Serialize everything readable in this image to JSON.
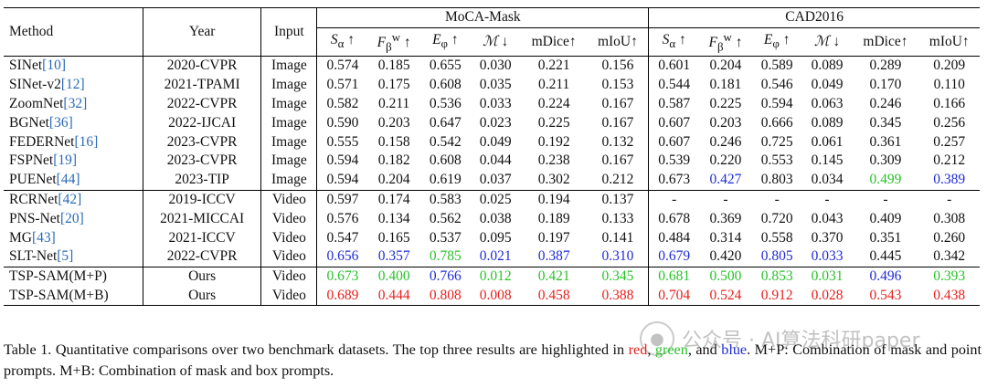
{
  "table": {
    "headers": {
      "method": "Method",
      "year": "Year",
      "input": "Input",
      "group1": "MoCA-Mask",
      "group2": "CAD2016"
    },
    "metrics": [
      "S_α ↑",
      "F_β^w ↑",
      "E_φ ↑",
      "M ↓",
      "mDice↑",
      "mIoU↑"
    ],
    "sections": [
      {
        "rows": [
          {
            "name": "SINet",
            "cite": "[10]",
            "year": "2020-CVPR",
            "input": "Image",
            "moca": [
              "0.574",
              "0.185",
              "0.655",
              "0.030",
              "0.221",
              "0.156"
            ],
            "cad": [
              "0.601",
              "0.204",
              "0.589",
              "0.089",
              "0.289",
              "0.209"
            ],
            "moca_colors": [
              "",
              "",
              "",
              "",
              "",
              ""
            ],
            "cad_colors": [
              "",
              "",
              "",
              "",
              "",
              ""
            ]
          },
          {
            "name": "SINet-v2",
            "cite": "[12]",
            "year": "2021-TPAMI",
            "input": "Image",
            "moca": [
              "0.571",
              "0.175",
              "0.608",
              "0.035",
              "0.211",
              "0.153"
            ],
            "cad": [
              "0.544",
              "0.181",
              "0.546",
              "0.049",
              "0.170",
              "0.110"
            ],
            "moca_colors": [
              "",
              "",
              "",
              "",
              "",
              ""
            ],
            "cad_colors": [
              "",
              "",
              "",
              "",
              "",
              ""
            ]
          },
          {
            "name": "ZoomNet",
            "cite": "[32]",
            "year": "2022-CVPR",
            "input": "Image",
            "moca": [
              "0.582",
              "0.211",
              "0.536",
              "0.033",
              "0.224",
              "0.167"
            ],
            "cad": [
              "0.587",
              "0.225",
              "0.594",
              "0.063",
              "0.246",
              "0.166"
            ],
            "moca_colors": [
              "",
              "",
              "",
              "",
              "",
              ""
            ],
            "cad_colors": [
              "",
              "",
              "",
              "",
              "",
              ""
            ]
          },
          {
            "name": "BGNet",
            "cite": "[36]",
            "year": "2022-IJCAI",
            "input": "Image",
            "moca": [
              "0.590",
              "0.203",
              "0.647",
              "0.023",
              "0.225",
              "0.167"
            ],
            "cad": [
              "0.607",
              "0.203",
              "0.666",
              "0.089",
              "0.345",
              "0.256"
            ],
            "moca_colors": [
              "",
              "",
              "",
              "",
              "",
              ""
            ],
            "cad_colors": [
              "",
              "",
              "",
              "",
              "",
              ""
            ]
          },
          {
            "name": "FEDERNet",
            "cite": "[16]",
            "year": "2023-CVPR",
            "input": "Image",
            "moca": [
              "0.555",
              "0.158",
              "0.542",
              "0.049",
              "0.192",
              "0.132"
            ],
            "cad": [
              "0.607",
              "0.246",
              "0.725",
              "0.061",
              "0.361",
              "0.257"
            ],
            "moca_colors": [
              "",
              "",
              "",
              "",
              "",
              ""
            ],
            "cad_colors": [
              "",
              "",
              "",
              "",
              "",
              ""
            ]
          },
          {
            "name": "FSPNet",
            "cite": "[19]",
            "year": "2023-CVPR",
            "input": "Image",
            "moca": [
              "0.594",
              "0.182",
              "0.608",
              "0.044",
              "0.238",
              "0.167"
            ],
            "cad": [
              "0.539",
              "0.220",
              "0.553",
              "0.145",
              "0.309",
              "0.212"
            ],
            "moca_colors": [
              "",
              "",
              "",
              "",
              "",
              ""
            ],
            "cad_colors": [
              "",
              "",
              "",
              "",
              "",
              ""
            ]
          },
          {
            "name": "PUENet",
            "cite": "[44]",
            "year": "2023-TIP",
            "input": "Image",
            "moca": [
              "0.594",
              "0.204",
              "0.619",
              "0.037",
              "0.302",
              "0.212"
            ],
            "cad": [
              "0.673",
              "0.427",
              "0.803",
              "0.034",
              "0.499",
              "0.389"
            ],
            "moca_colors": [
              "",
              "",
              "",
              "",
              "",
              ""
            ],
            "cad_colors": [
              "",
              "blue",
              "",
              "",
              "green",
              "blue"
            ]
          }
        ]
      },
      {
        "rows": [
          {
            "name": "RCRNet",
            "cite": "[42]",
            "year": "2019-ICCV",
            "input": "Video",
            "moca": [
              "0.597",
              "0.174",
              "0.583",
              "0.025",
              "0.194",
              "0.137"
            ],
            "cad": [
              "-",
              "-",
              "-",
              "-",
              "-",
              "-"
            ],
            "moca_colors": [
              "",
              "",
              "",
              "",
              "",
              ""
            ],
            "cad_colors": [
              "",
              "",
              "",
              "",
              "",
              ""
            ]
          },
          {
            "name": "PNS-Net",
            "cite": "[20]",
            "year": "2021-MICCAI",
            "input": "Video",
            "moca": [
              "0.576",
              "0.134",
              "0.562",
              "0.038",
              "0.189",
              "0.133"
            ],
            "cad": [
              "0.678",
              "0.369",
              "0.720",
              "0.043",
              "0.409",
              "0.308"
            ],
            "moca_colors": [
              "",
              "",
              "",
              "",
              "",
              ""
            ],
            "cad_colors": [
              "",
              "",
              "",
              "",
              "",
              ""
            ]
          },
          {
            "name": "MG",
            "cite": "[43]",
            "year": "2021-ICCV",
            "input": "Video",
            "moca": [
              "0.547",
              "0.165",
              "0.537",
              "0.095",
              "0.197",
              "0.141"
            ],
            "cad": [
              "0.484",
              "0.314",
              "0.558",
              "0.370",
              "0.351",
              "0.260"
            ],
            "moca_colors": [
              "",
              "",
              "",
              "",
              "",
              ""
            ],
            "cad_colors": [
              "",
              "",
              "",
              "",
              "",
              ""
            ]
          },
          {
            "name": "SLT-Net",
            "cite": "[5]",
            "year": "2022-CVPR",
            "input": "Video",
            "moca": [
              "0.656",
              "0.357",
              "0.785",
              "0.021",
              "0.387",
              "0.310"
            ],
            "cad": [
              "0.679",
              "0.420",
              "0.805",
              "0.033",
              "0.445",
              "0.342"
            ],
            "moca_colors": [
              "blue",
              "blue",
              "green",
              "blue",
              "blue",
              "blue"
            ],
            "cad_colors": [
              "blue",
              "",
              "blue",
              "blue",
              "",
              ""
            ]
          }
        ]
      },
      {
        "rows": [
          {
            "name": "TSP-SAM(M+P)",
            "cite": "",
            "year": "Ours",
            "input": "Video",
            "moca": [
              "0.673",
              "0.400",
              "0.766",
              "0.012",
              "0.421",
              "0.345"
            ],
            "cad": [
              "0.681",
              "0.500",
              "0.853",
              "0.031",
              "0.496",
              "0.393"
            ],
            "moca_colors": [
              "green",
              "green",
              "blue",
              "green",
              "green",
              "green"
            ],
            "cad_colors": [
              "green",
              "green",
              "green",
              "green",
              "blue",
              "green"
            ]
          },
          {
            "name": "TSP-SAM(M+B)",
            "cite": "",
            "year": "Ours",
            "input": "Video",
            "moca": [
              "0.689",
              "0.444",
              "0.808",
              "0.008",
              "0.458",
              "0.388"
            ],
            "cad": [
              "0.704",
              "0.524",
              "0.912",
              "0.028",
              "0.543",
              "0.438"
            ],
            "moca_colors": [
              "red",
              "red",
              "red",
              "red",
              "red",
              "red"
            ],
            "cad_colors": [
              "red",
              "red",
              "red",
              "red",
              "red",
              "red"
            ]
          }
        ]
      }
    ]
  },
  "caption": {
    "part1": "Table 1.  Quantitative comparisons over two benchmark datasets.  The top three results are highlighted in ",
    "red_word": "red",
    "sep1": ", ",
    "green_word": "green",
    "sep2": ", and ",
    "blue_word": "blue",
    "part2": ".  M+P: Combination of mask and point prompts. M+B: Combination of mask and box prompts."
  },
  "watermark": {
    "text": "公众号 · AI算法科研paper"
  },
  "colors": {
    "red": "#e8201c",
    "green": "#28c228",
    "blue": "#1f2bd6",
    "cite": "#2a6ab8"
  }
}
